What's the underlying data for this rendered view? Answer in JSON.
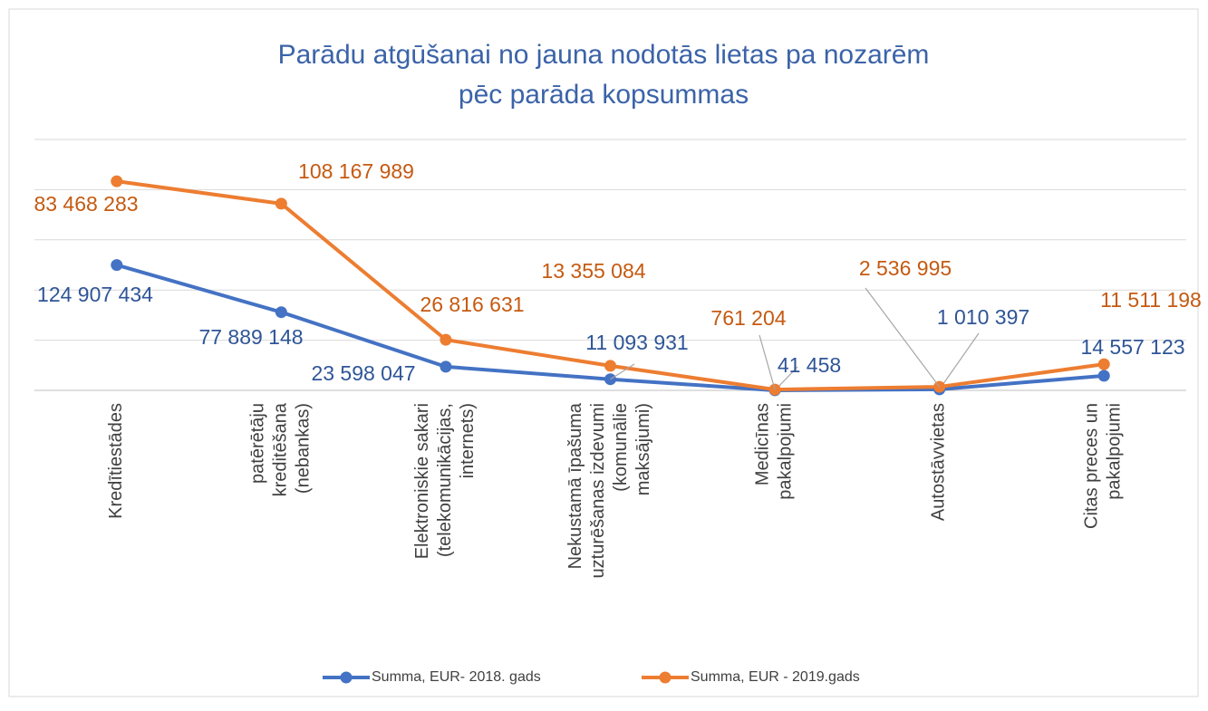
{
  "chart_data": {
    "type": "line",
    "stacked": true,
    "title": "Parādu atgūšanai no jauna nodotās lietas pa nozarēm pēc parāda kopsummas",
    "categories": [
      "Kredītiestādes",
      "patērētāju kreditēšana (nebankas)",
      "Elektroniskie sakari (telekomunikācijas, internets)",
      "Nekustamā īpašuma uzturēšanas izdevumi (komunālie maksājumi)",
      "Medicīnas pakalpojumi",
      "Autostāvvietas",
      "Citas preces un pakalpojumi"
    ],
    "series": [
      {
        "name": "Summa, EUR- 2018. gads",
        "color": "#4472c4",
        "label_color": "#2f5597",
        "values": [
          124907434,
          77889148,
          23598047,
          11093931,
          41458,
          1010397,
          14557123
        ],
        "value_labels": [
          "124 907 434",
          "77 889 148",
          "23 598 047",
          "11 093 931",
          "41 458",
          "1 010 397",
          "14 557 123"
        ]
      },
      {
        "name": "Summa, EUR - 2019.gads",
        "color": "#ed7d31",
        "label_color": "#c55a11",
        "values": [
          83468283,
          108167989,
          26816631,
          13355084,
          761204,
          2536995,
          11511198
        ],
        "value_labels": [
          "83 468 283",
          "108 167 989",
          "26 816 631",
          "13 355 084",
          "761 204",
          "2 536 995",
          "11 511 198"
        ]
      }
    ],
    "ylim": [
      0,
      250000000
    ],
    "yticks": [
      0,
      50000000,
      100000000,
      150000000,
      200000000,
      250000000
    ],
    "grid": true,
    "legend": "bottom"
  }
}
